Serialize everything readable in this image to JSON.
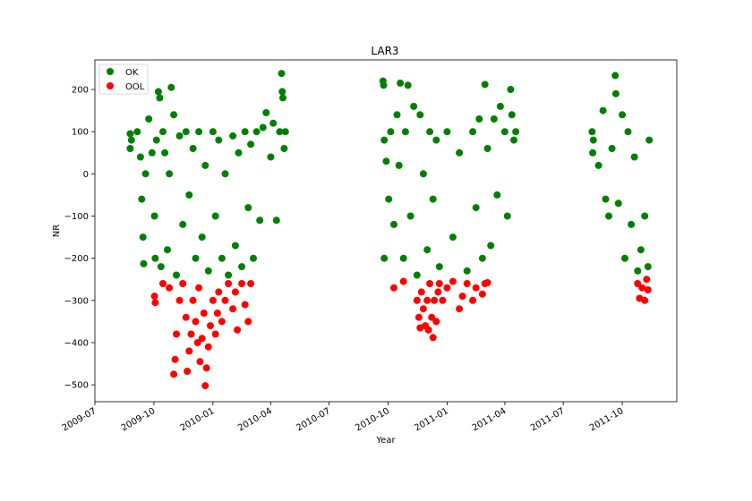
{
  "chart_data": {
    "type": "scatter",
    "title": "LAR3",
    "xlabel": "Year",
    "ylabel": "NR",
    "x_axis_kind": "date",
    "xlim": [
      "2009-07-01",
      "2011-12-25"
    ],
    "ylim": [
      -540,
      270
    ],
    "grid": false,
    "legend_position": "top-left",
    "x_ticks": [
      "2009-07",
      "2009-10",
      "2010-01",
      "2010-04",
      "2010-07",
      "2010-10",
      "2011-01",
      "2011-04",
      "2011-07",
      "2011-10"
    ],
    "y_ticks": [
      200,
      100,
      0,
      -100,
      -200,
      -300,
      -400,
      -500
    ],
    "y_tick_labels": [
      "200",
      "100",
      "0",
      "−100",
      "−200",
      "−300",
      "−400",
      "−500"
    ],
    "series": [
      {
        "name": "OK",
        "color": "#008000",
        "points": [
          [
            "2009-08-25",
            95
          ],
          [
            "2009-08-25",
            60
          ],
          [
            "2009-08-27",
            80
          ],
          [
            "2009-09-05",
            100
          ],
          [
            "2009-09-10",
            40
          ],
          [
            "2009-09-12",
            -60
          ],
          [
            "2009-09-14",
            -150
          ],
          [
            "2009-09-15",
            -213
          ],
          [
            "2009-09-18",
            0
          ],
          [
            "2009-09-23",
            130
          ],
          [
            "2009-09-28",
            50
          ],
          [
            "2009-10-02",
            -100
          ],
          [
            "2009-10-03",
            -200
          ],
          [
            "2009-10-05",
            80
          ],
          [
            "2009-10-08",
            195
          ],
          [
            "2009-10-10",
            180
          ],
          [
            "2009-10-12",
            -220
          ],
          [
            "2009-10-15",
            100
          ],
          [
            "2009-10-18",
            50
          ],
          [
            "2009-10-22",
            -180
          ],
          [
            "2009-10-25",
            0
          ],
          [
            "2009-10-28",
            205
          ],
          [
            "2009-11-01",
            140
          ],
          [
            "2009-11-05",
            -240
          ],
          [
            "2009-11-10",
            90
          ],
          [
            "2009-11-15",
            -120
          ],
          [
            "2009-11-20",
            100
          ],
          [
            "2009-11-25",
            -50
          ],
          [
            "2009-12-01",
            60
          ],
          [
            "2009-12-05",
            -200
          ],
          [
            "2009-12-10",
            100
          ],
          [
            "2009-12-15",
            -150
          ],
          [
            "2009-12-20",
            20
          ],
          [
            "2009-12-25",
            -230
          ],
          [
            "2010-01-01",
            100
          ],
          [
            "2010-01-05",
            -100
          ],
          [
            "2010-01-10",
            80
          ],
          [
            "2010-01-15",
            -200
          ],
          [
            "2010-01-20",
            0
          ],
          [
            "2010-01-25",
            -240
          ],
          [
            "2010-02-01",
            90
          ],
          [
            "2010-02-05",
            -170
          ],
          [
            "2010-02-10",
            50
          ],
          [
            "2010-02-15",
            -220
          ],
          [
            "2010-02-20",
            100
          ],
          [
            "2010-02-25",
            -80
          ],
          [
            "2010-03-01",
            70
          ],
          [
            "2010-03-05",
            -200
          ],
          [
            "2010-03-10",
            100
          ],
          [
            "2010-03-15",
            -110
          ],
          [
            "2010-03-20",
            110
          ],
          [
            "2010-03-25",
            145
          ],
          [
            "2010-04-01",
            40
          ],
          [
            "2010-04-05",
            120
          ],
          [
            "2010-04-10",
            -110
          ],
          [
            "2010-04-15",
            100
          ],
          [
            "2010-04-18",
            238
          ],
          [
            "2010-04-19",
            195
          ],
          [
            "2010-04-20",
            180
          ],
          [
            "2010-04-22",
            60
          ],
          [
            "2010-04-24",
            100
          ],
          [
            "2010-09-23",
            220
          ],
          [
            "2010-09-24",
            210
          ],
          [
            "2010-09-25",
            -200
          ],
          [
            "2010-09-25",
            80
          ],
          [
            "2010-09-28",
            30
          ],
          [
            "2010-10-02",
            -60
          ],
          [
            "2010-10-05",
            100
          ],
          [
            "2010-10-10",
            -120
          ],
          [
            "2010-10-15",
            140
          ],
          [
            "2010-10-18",
            20
          ],
          [
            "2010-10-20",
            215
          ],
          [
            "2010-10-25",
            -200
          ],
          [
            "2010-10-28",
            100
          ],
          [
            "2010-11-01",
            210
          ],
          [
            "2010-11-05",
            -100
          ],
          [
            "2010-11-10",
            160
          ],
          [
            "2010-11-15",
            -240
          ],
          [
            "2010-11-20",
            140
          ],
          [
            "2010-11-25",
            0
          ],
          [
            "2010-12-01",
            -180
          ],
          [
            "2010-12-05",
            100
          ],
          [
            "2010-12-10",
            -60
          ],
          [
            "2010-12-15",
            80
          ],
          [
            "2010-12-20",
            -220
          ],
          [
            "2011-01-01",
            100
          ],
          [
            "2011-01-10",
            -150
          ],
          [
            "2011-01-20",
            50
          ],
          [
            "2011-02-01",
            -230
          ],
          [
            "2011-02-10",
            100
          ],
          [
            "2011-02-15",
            -80
          ],
          [
            "2011-02-20",
            130
          ],
          [
            "2011-02-25",
            -200
          ],
          [
            "2011-03-01",
            212
          ],
          [
            "2011-03-05",
            60
          ],
          [
            "2011-03-10",
            -170
          ],
          [
            "2011-03-15",
            130
          ],
          [
            "2011-03-20",
            -50
          ],
          [
            "2011-03-25",
            160
          ],
          [
            "2011-04-01",
            100
          ],
          [
            "2011-04-05",
            -100
          ],
          [
            "2011-04-10",
            200
          ],
          [
            "2011-04-12",
            140
          ],
          [
            "2011-04-15",
            80
          ],
          [
            "2011-04-18",
            100
          ],
          [
            "2011-08-15",
            100
          ],
          [
            "2011-08-16",
            50
          ],
          [
            "2011-08-17",
            80
          ],
          [
            "2011-08-25",
            20
          ],
          [
            "2011-09-01",
            150
          ],
          [
            "2011-09-05",
            -60
          ],
          [
            "2011-09-10",
            -100
          ],
          [
            "2011-09-15",
            60
          ],
          [
            "2011-09-20",
            233
          ],
          [
            "2011-09-21",
            190
          ],
          [
            "2011-09-25",
            -70
          ],
          [
            "2011-10-01",
            140
          ],
          [
            "2011-10-05",
            -200
          ],
          [
            "2011-10-10",
            100
          ],
          [
            "2011-10-15",
            -120
          ],
          [
            "2011-10-20",
            40
          ],
          [
            "2011-10-25",
            -230
          ],
          [
            "2011-10-30",
            -180
          ],
          [
            "2011-11-05",
            -100
          ],
          [
            "2011-11-10",
            -220
          ],
          [
            "2011-11-12",
            80
          ]
        ]
      },
      {
        "name": "OOL",
        "color": "#ff0000",
        "points": [
          [
            "2009-10-02",
            -290
          ],
          [
            "2009-10-03",
            -305
          ],
          [
            "2009-10-15",
            -260
          ],
          [
            "2009-10-25",
            -270
          ],
          [
            "2009-11-01",
            -475
          ],
          [
            "2009-11-03",
            -440
          ],
          [
            "2009-11-05",
            -380
          ],
          [
            "2009-11-10",
            -300
          ],
          [
            "2009-11-15",
            -260
          ],
          [
            "2009-11-20",
            -340
          ],
          [
            "2009-11-22",
            -468
          ],
          [
            "2009-11-25",
            -420
          ],
          [
            "2009-11-28",
            -380
          ],
          [
            "2009-12-01",
            -300
          ],
          [
            "2009-12-05",
            -350
          ],
          [
            "2009-12-08",
            -400
          ],
          [
            "2009-12-10",
            -270
          ],
          [
            "2009-12-12",
            -445
          ],
          [
            "2009-12-15",
            -390
          ],
          [
            "2009-12-18",
            -330
          ],
          [
            "2009-12-20",
            -502
          ],
          [
            "2009-12-22",
            -460
          ],
          [
            "2009-12-25",
            -410
          ],
          [
            "2009-12-28",
            -360
          ],
          [
            "2010-01-01",
            -300
          ],
          [
            "2010-01-05",
            -380
          ],
          [
            "2010-01-08",
            -330
          ],
          [
            "2010-01-10",
            -280
          ],
          [
            "2010-01-15",
            -350
          ],
          [
            "2010-01-20",
            -300
          ],
          [
            "2010-01-25",
            -260
          ],
          [
            "2010-02-01",
            -320
          ],
          [
            "2010-02-05",
            -280
          ],
          [
            "2010-02-08",
            -370
          ],
          [
            "2010-02-15",
            -260
          ],
          [
            "2010-02-20",
            -310
          ],
          [
            "2010-02-25",
            -350
          ],
          [
            "2010-03-01",
            -260
          ],
          [
            "2010-10-10",
            -270
          ],
          [
            "2010-10-25",
            -255
          ],
          [
            "2010-11-15",
            -300
          ],
          [
            "2010-11-18",
            -340
          ],
          [
            "2010-11-20",
            -365
          ],
          [
            "2010-11-22",
            -280
          ],
          [
            "2010-11-25",
            -320
          ],
          [
            "2010-11-28",
            -360
          ],
          [
            "2010-12-01",
            -300
          ],
          [
            "2010-12-03",
            -370
          ],
          [
            "2010-12-05",
            -260
          ],
          [
            "2010-12-08",
            -340
          ],
          [
            "2010-12-10",
            -388
          ],
          [
            "2010-12-12",
            -300
          ],
          [
            "2010-12-15",
            -350
          ],
          [
            "2010-12-18",
            -280
          ],
          [
            "2010-12-20",
            -260
          ],
          [
            "2010-12-25",
            -300
          ],
          [
            "2011-01-01",
            -270
          ],
          [
            "2011-01-10",
            -255
          ],
          [
            "2011-01-20",
            -320
          ],
          [
            "2011-01-25",
            -290
          ],
          [
            "2011-02-01",
            -260
          ],
          [
            "2011-02-10",
            -300
          ],
          [
            "2011-02-15",
            -270
          ],
          [
            "2011-02-25",
            -285
          ],
          [
            "2011-03-01",
            -260
          ],
          [
            "2011-03-05",
            -258
          ],
          [
            "2011-10-25",
            -260
          ],
          [
            "2011-10-28",
            -295
          ],
          [
            "2011-11-01",
            -270
          ],
          [
            "2011-11-05",
            -300
          ],
          [
            "2011-11-08",
            -250
          ],
          [
            "2011-11-10",
            -275
          ]
        ]
      }
    ]
  }
}
